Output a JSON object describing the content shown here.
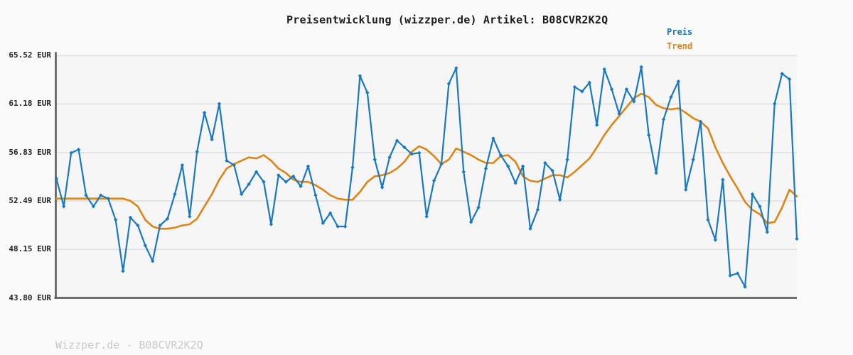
{
  "title": "Preisentwicklung (wizzper.de) Artikel: B08CVR2K2Q",
  "article_id": "B08CVR2K2Q",
  "legend": {
    "price_label": "Preis",
    "trend_label": "Trend"
  },
  "watermark": "Wizzper.de - B08CVR2K2Q",
  "colors": {
    "price": "#1a78c2",
    "trend": "#dd8516",
    "grid": "#e2e2e2",
    "axis": "#5c5c5c",
    "plot_background": "#f6f6f6",
    "page_background": "#fafafa",
    "title_text": "#1c1c1c",
    "tick_text": "#232323",
    "watermark_text": "#c9c9c9"
  },
  "y_axis": {
    "unit": "EUR",
    "tick_labels": [
      "65.52 EUR",
      "61.18 EUR",
      "56.83 EUR",
      "52.49 EUR",
      "48.15 EUR",
      "43.80 EUR"
    ],
    "tick_values": [
      65.52,
      61.18,
      56.83,
      52.49,
      48.15,
      43.8
    ]
  },
  "x_axis": {
    "tick_labels": [],
    "labels_visible": false
  },
  "chart_data": {
    "type": "line",
    "title": "Preisentwicklung (wizzper.de) Artikel: B08CVR2K2Q",
    "xlabel": "",
    "ylabel": "EUR",
    "ylim": [
      43.8,
      65.52
    ],
    "y_ticks": [
      65.52,
      61.18,
      56.83,
      52.49,
      48.15,
      43.8
    ],
    "grid": true,
    "legend_position": "top-right",
    "x_labels_visible": false,
    "num_points": 101,
    "series": [
      {
        "name": "Preis",
        "color": "#1a78c2",
        "marker": "diamond",
        "line_width": 2.2,
        "values": [
          54.5,
          52.0,
          56.8,
          57.1,
          53.0,
          52.0,
          53.0,
          52.7,
          50.8,
          46.2,
          51.0,
          50.3,
          48.5,
          47.1,
          50.3,
          50.9,
          53.1,
          55.7,
          51.1,
          56.9,
          60.4,
          58.0,
          61.2,
          56.1,
          55.7,
          53.1,
          54.0,
          55.1,
          54.2,
          50.4,
          54.8,
          54.2,
          54.7,
          53.8,
          55.6,
          53.0,
          50.5,
          51.4,
          50.2,
          50.2,
          55.5,
          63.7,
          62.2,
          56.2,
          53.7,
          56.4,
          57.9,
          57.3,
          56.7,
          56.8,
          51.1,
          54.3,
          55.8,
          63.0,
          64.4,
          55.1,
          50.6,
          51.9,
          55.4,
          58.1,
          56.6,
          55.6,
          54.1,
          55.6,
          50.0,
          51.7,
          55.9,
          55.2,
          52.6,
          56.2,
          62.7,
          62.3,
          63.1,
          59.3,
          64.3,
          62.5,
          60.3,
          62.5,
          61.4,
          64.5,
          58.4,
          55.0,
          59.8,
          61.8,
          63.2,
          53.5,
          56.2,
          59.6,
          50.8,
          49.0,
          54.4,
          45.8,
          46.0,
          44.8,
          53.1,
          52.0,
          49.7,
          61.2,
          63.9,
          63.4,
          49.1
        ]
      },
      {
        "name": "Trend",
        "color": "#dd8516",
        "marker": "none",
        "line_width": 2.6,
        "values": [
          52.7,
          52.7,
          52.7,
          52.7,
          52.7,
          52.7,
          52.7,
          52.7,
          52.7,
          52.7,
          52.5,
          52.0,
          50.8,
          50.2,
          50.0,
          50.0,
          50.1,
          50.3,
          50.4,
          50.9,
          52.0,
          53.1,
          54.4,
          55.4,
          55.8,
          56.1,
          56.4,
          56.3,
          56.6,
          56.1,
          55.4,
          55.0,
          54.4,
          54.2,
          54.2,
          53.9,
          53.5,
          53.0,
          52.7,
          52.6,
          52.6,
          53.3,
          54.2,
          54.7,
          54.8,
          55.0,
          55.4,
          56.0,
          56.9,
          57.4,
          57.1,
          56.5,
          55.8,
          56.2,
          57.2,
          56.9,
          56.6,
          56.2,
          55.9,
          55.9,
          56.5,
          56.6,
          56.0,
          54.7,
          54.3,
          54.2,
          54.5,
          54.8,
          54.8,
          54.6,
          55.1,
          55.7,
          56.3,
          57.3,
          58.4,
          59.3,
          60.1,
          60.9,
          61.7,
          62.1,
          61.8,
          61.1,
          60.8,
          60.7,
          60.8,
          60.4,
          59.9,
          59.6,
          59.0,
          57.3,
          55.9,
          54.7,
          53.6,
          52.4,
          51.7,
          51.3,
          50.5,
          50.6,
          51.9,
          53.5,
          52.9
        ]
      }
    ]
  }
}
